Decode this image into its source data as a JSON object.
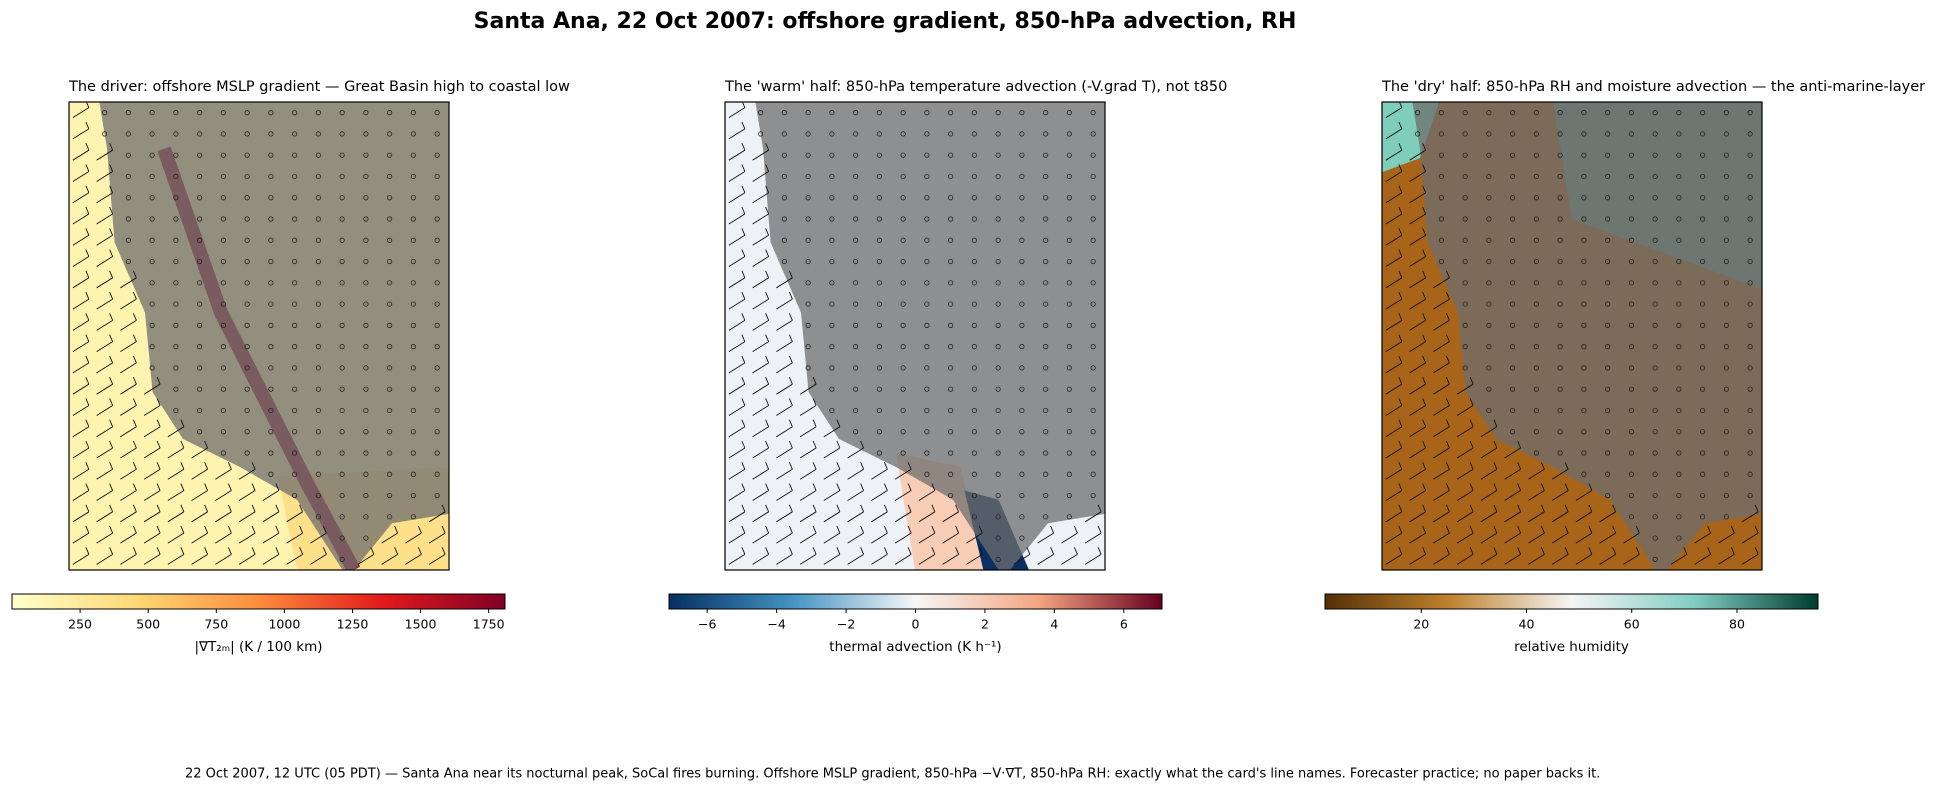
{
  "title": "Santa Ana, 22 Oct 2007: offshore gradient, 850-hPa advection, RH",
  "footer": "22 Oct 2007, 12 UTC (05 PDT) — Santa Ana near its nocturnal peak, SoCal fires burning. Offshore MSLP gradient, 850-hPa −V·∇T, 850-hPa RH: exactly what the card's line names. Forecaster practice; no paper backs it.",
  "chart_data": [
    {
      "type": "map",
      "title": "The driver: offshore MSLP gradient — Great Basin high to coastal low",
      "colorbar_label": "|∇T₂ₘ| (K / 100 km)",
      "clim": [
        0,
        1810
      ],
      "ticks": [
        250,
        500,
        750,
        1000,
        1250,
        1500,
        1750
      ],
      "colormap": [
        "#ffffcc",
        "#fed976",
        "#fd8d3c",
        "#e31a1c",
        "#800026"
      ]
    },
    {
      "type": "map",
      "title": "The 'warm' half: 850-hPa temperature advection (-V.grad T), not t850",
      "colorbar_label": "thermal advection (K h⁻¹)",
      "clim": [
        -7.1,
        7.1
      ],
      "ticks": [
        {
          "value": -6,
          "label": "−6"
        },
        {
          "value": -4,
          "label": "−4"
        },
        {
          "value": -2,
          "label": "−2"
        },
        0,
        2,
        4,
        6
      ],
      "colormap": [
        "#053061",
        "#4393c3",
        "#f7f7f7",
        "#f4a582",
        "#67001f"
      ]
    },
    {
      "type": "map",
      "title": "The 'dry' half: 850-hPa RH and moisture advection — the anti-marine-layer",
      "colorbar_label": "relative humidity",
      "clim": [
        1.7,
        95.4
      ],
      "ticks": [
        20,
        40,
        60,
        80
      ],
      "colormap": [
        "#543005",
        "#bf812d",
        "#f5f5f5",
        "#80cdc1",
        "#003c30"
      ]
    }
  ]
}
